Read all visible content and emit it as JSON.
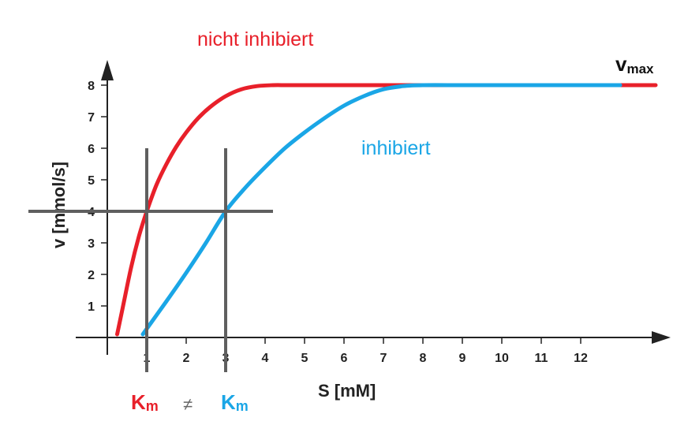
{
  "colors": {
    "uninhibited": "#e8202a",
    "inhibited": "#1aa6e6",
    "axis": "#222222",
    "guide": "#5f5f5f"
  },
  "chart_data": {
    "type": "line",
    "xlabel": "S [mM]",
    "ylabel": "v [mmol/s]",
    "xlim": [
      0,
      13.8
    ],
    "ylim": [
      0,
      8.5
    ],
    "x_ticks": [
      "1",
      "2",
      "3",
      "4",
      "5",
      "6",
      "7",
      "8",
      "9",
      "10",
      "11",
      "12"
    ],
    "y_ticks": [
      "1",
      "2",
      "3",
      "4",
      "5",
      "6",
      "7",
      "8"
    ],
    "grid": false,
    "series": [
      {
        "name": "nicht inhibiert",
        "color": "#e8202a",
        "x": [
          0.25,
          0.4,
          0.6,
          0.8,
          1.0,
          1.25,
          1.5,
          1.75,
          2.0,
          2.3,
          2.6,
          3.0,
          3.4,
          3.8,
          4.2,
          4.6,
          5.5,
          7.0,
          9.0,
          11.0,
          13.0,
          13.9
        ],
        "y": [
          0.1,
          1.0,
          2.2,
          3.2,
          4.0,
          4.85,
          5.5,
          6.05,
          6.5,
          6.95,
          7.3,
          7.65,
          7.87,
          7.97,
          8.0,
          8.0,
          8.0,
          8.0,
          8.0,
          8.0,
          8.0,
          8.0
        ]
      },
      {
        "name": "inhibiert",
        "color": "#1aa6e6",
        "x": [
          0.9,
          1.5,
          2.0,
          2.5,
          3.0,
          3.5,
          4.0,
          4.5,
          5.0,
          5.5,
          6.0,
          6.5,
          7.0,
          7.5,
          8.0,
          9.0,
          10.0,
          11.0,
          12.0,
          13.0
        ],
        "y": [
          0.1,
          1.15,
          2.05,
          3.0,
          4.0,
          4.75,
          5.4,
          6.0,
          6.5,
          6.95,
          7.35,
          7.65,
          7.87,
          7.97,
          8.0,
          8.0,
          8.0,
          8.0,
          8.0,
          8.0
        ]
      }
    ],
    "guides": {
      "horizontal_y": 4,
      "horizontal_x_range": [
        -2,
        4.2
      ],
      "vertical_x": [
        1,
        3
      ],
      "vertical_y_range": [
        -1.1,
        6
      ]
    },
    "annotations": {
      "vmax_main": "v",
      "vmax_sub": "max",
      "km_main": "K",
      "km_sub": "m",
      "not_equal": "≠"
    }
  }
}
